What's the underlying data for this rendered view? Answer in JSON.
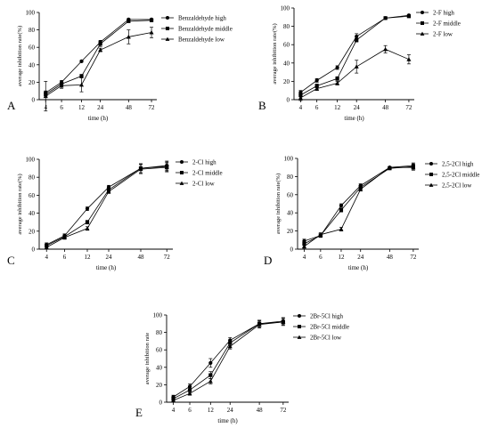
{
  "figure": {
    "x_ticks": [
      "4",
      "6",
      "12",
      "24",
      "48",
      "72"
    ],
    "y_ticks": [
      "0",
      "20",
      "40",
      "60",
      "80",
      "100"
    ],
    "colors": {
      "ink": "#000000",
      "background": "#ffffff"
    }
  },
  "chart_data": [
    {
      "panel": "A",
      "type": "line",
      "categories": [
        "4",
        "6",
        "12",
        "24",
        "48",
        "72"
      ],
      "xlabel": "time (h)",
      "ylabel": "average inhibition rate(%)",
      "ylim": [
        0,
        100
      ],
      "legend_position": "top-right",
      "series": [
        {
          "name": "Benzaldehyde high",
          "marker": "circle",
          "values": [
            8,
            20,
            44,
            66,
            92,
            92
          ],
          "errors": [
            2,
            2,
            1,
            2,
            1,
            1
          ]
        },
        {
          "name": "Benzaldehyde middle",
          "marker": "square",
          "values": [
            6,
            18,
            27,
            64,
            90,
            91
          ],
          "errors": [
            3,
            2,
            2,
            3,
            1,
            1
          ]
        },
        {
          "name": "Benzaldehyde low",
          "marker": "triangle",
          "values": [
            4,
            16,
            17,
            57,
            72,
            77
          ],
          "errors": [
            17,
            3,
            8,
            2,
            8,
            6
          ]
        }
      ]
    },
    {
      "panel": "B",
      "type": "line",
      "categories": [
        "4",
        "6",
        "12",
        "24",
        "48",
        "72"
      ],
      "xlabel": "time (h)",
      "ylabel": "average inhibition rate(%)",
      "ylim": [
        0,
        100
      ],
      "legend_position": "top-right",
      "series": [
        {
          "name": "2-F high",
          "marker": "circle",
          "values": [
            8,
            21,
            35,
            69,
            89,
            92
          ],
          "errors": [
            2,
            2,
            2,
            3,
            1,
            1
          ]
        },
        {
          "name": "2-F middle",
          "marker": "square",
          "values": [
            5,
            15,
            23,
            65,
            89,
            91
          ],
          "errors": [
            2,
            2,
            2,
            2,
            1,
            1
          ]
        },
        {
          "name": "2-F low",
          "marker": "triangle",
          "values": [
            2,
            12,
            18,
            36,
            55,
            44
          ],
          "errors": [
            3,
            2,
            2,
            7,
            4,
            5
          ]
        }
      ]
    },
    {
      "panel": "C",
      "type": "line",
      "categories": [
        "4",
        "6",
        "12",
        "24",
        "48",
        "72"
      ],
      "xlabel": "time (h)",
      "ylabel": "average inhibition rate(%)",
      "ylim": [
        0,
        100
      ],
      "legend_position": "top-right",
      "series": [
        {
          "name": "2-Cl high",
          "marker": "circle",
          "values": [
            5,
            15,
            45,
            69,
            90,
            93
          ],
          "errors": [
            2,
            2,
            2,
            2,
            5,
            5
          ]
        },
        {
          "name": "2-Cl middle",
          "marker": "square",
          "values": [
            4,
            14,
            30,
            66,
            90,
            92
          ],
          "errors": [
            2,
            2,
            2,
            2,
            5,
            5
          ]
        },
        {
          "name": "2-Cl low",
          "marker": "triangle",
          "values": [
            2,
            13,
            23,
            64,
            89,
            91
          ],
          "errors": [
            2,
            2,
            2,
            2,
            5,
            5
          ]
        }
      ]
    },
    {
      "panel": "D",
      "type": "line",
      "categories": [
        "4",
        "6",
        "12",
        "24",
        "48",
        "72"
      ],
      "xlabel": "time (h)",
      "ylabel": "average inhibition rate(%)",
      "ylim": [
        0,
        100
      ],
      "legend_position": "top-right",
      "series": [
        {
          "name": "2,5-2Cl high",
          "marker": "circle",
          "values": [
            9,
            15,
            48,
            70,
            90,
            92
          ],
          "errors": [
            2,
            2,
            2,
            2,
            1,
            3
          ]
        },
        {
          "name": "2,5-2Cl middle",
          "marker": "square",
          "values": [
            6,
            15,
            43,
            68,
            89,
            91
          ],
          "errors": [
            2,
            2,
            2,
            2,
            1,
            3
          ]
        },
        {
          "name": "2,5-2Cl low",
          "marker": "triangle",
          "values": [
            3,
            16,
            22,
            66,
            90,
            90
          ],
          "errors": [
            2,
            2,
            2,
            2,
            1,
            3
          ]
        }
      ]
    },
    {
      "panel": "E",
      "type": "line",
      "categories": [
        "4",
        "6",
        "12",
        "24",
        "48",
        "72"
      ],
      "xlabel": "time (h)",
      "ylabel": "average inhibition rate",
      "ylim": [
        0,
        100
      ],
      "legend_position": "top-right",
      "series": [
        {
          "name": "2Br-5Cl high",
          "marker": "circle",
          "values": [
            6,
            18,
            45,
            71,
            90,
            93
          ],
          "errors": [
            2,
            3,
            5,
            3,
            4,
            4
          ]
        },
        {
          "name": "2Br-5Cl middle",
          "marker": "square",
          "values": [
            4,
            14,
            31,
            68,
            90,
            92
          ],
          "errors": [
            2,
            3,
            4,
            3,
            4,
            4
          ]
        },
        {
          "name": "2Br-5Cl low",
          "marker": "triangle",
          "values": [
            2,
            10,
            24,
            64,
            89,
            92
          ],
          "errors": [
            2,
            2,
            3,
            3,
            4,
            4
          ]
        }
      ]
    }
  ]
}
